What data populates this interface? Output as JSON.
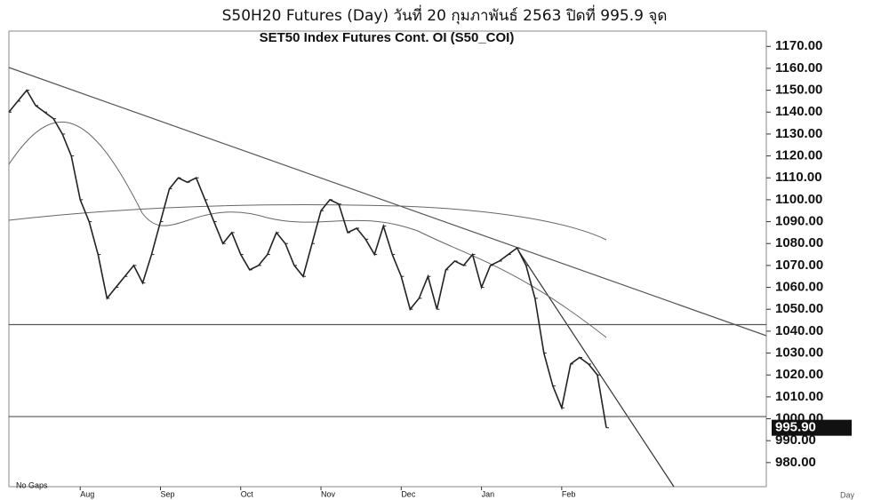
{
  "header": "S50H20 Futures (Day) วันที่   20 กุมภาพันธ์   2563 ปิดที่   995.9 จุด",
  "chart_data": {
    "type": "line",
    "title": "SET50 Index Futures Cont. OI (S50_COI)",
    "gap_note": "No Gaps",
    "period": "Day",
    "color": "#222222",
    "categories": [
      null,
      null,
      null,
      null,
      null,
      null,
      null,
      null,
      "Aug",
      null,
      null,
      null,
      null,
      null,
      null,
      null,
      null,
      "Sep",
      null,
      null,
      null,
      null,
      null,
      null,
      null,
      null,
      "Oct",
      null,
      null,
      null,
      null,
      null,
      null,
      null,
      null,
      "Nov",
      null,
      null,
      null,
      null,
      null,
      null,
      null,
      null,
      "Dec",
      null,
      null,
      null,
      null,
      null,
      null,
      null,
      null,
      "Jan",
      null,
      null,
      null,
      null,
      null,
      null,
      null,
      null,
      "Feb",
      null,
      null,
      null,
      null,
      null
    ],
    "values": [
      1140,
      1145,
      1150,
      1143,
      1140,
      1137,
      1130,
      1120,
      1100,
      1090,
      1075,
      1055,
      1060,
      1065,
      1070,
      1062,
      1075,
      1090,
      1105,
      1110,
      1108,
      1110,
      1100,
      1090,
      1080,
      1085,
      1075,
      1068,
      1070,
      1075,
      1085,
      1080,
      1070,
      1065,
      1080,
      1095,
      1100,
      1098,
      1085,
      1087,
      1082,
      1075,
      1088,
      1075,
      1065,
      1050,
      1055,
      1065,
      1050,
      1068,
      1072,
      1070,
      1075,
      1060,
      1070,
      1072,
      1075,
      1078,
      1070,
      1055,
      1030,
      1015,
      1005,
      1025,
      1028,
      1025,
      1020,
      995.9
    ],
    "value_labels": [
      null,
      null,
      null,
      null,
      null,
      null,
      null,
      null,
      null,
      null,
      null,
      null,
      null,
      null,
      null,
      null,
      null,
      null,
      null,
      null,
      null,
      null,
      null,
      null,
      null,
      null,
      null,
      null,
      null,
      null,
      null,
      null,
      null,
      null,
      null,
      null,
      null,
      null,
      null,
      null,
      null,
      null,
      null,
      null,
      null,
      null,
      null,
      null,
      null,
      null,
      null,
      null,
      null,
      null,
      null,
      null,
      null,
      null,
      null,
      null,
      null,
      null,
      null,
      null,
      null,
      null,
      null,
      "995.90"
    ],
    "reference_lines": [
      1043,
      1001
    ],
    "ylim": [
      969,
      1177
    ],
    "yticks": [
      {
        "value": 980,
        "label": "980.00"
      },
      {
        "value": 990,
        "label": "990.00"
      },
      {
        "value": 1000,
        "label": "1000.00"
      },
      {
        "value": 1010,
        "label": "1010.00"
      },
      {
        "value": 1020,
        "label": "1020.00"
      },
      {
        "value": 1030,
        "label": "1030.00"
      },
      {
        "value": 1040,
        "label": "1040.00"
      },
      {
        "value": 1050,
        "label": "1050.00"
      },
      {
        "value": 1060,
        "label": "1060.00"
      },
      {
        "value": 1070,
        "label": "1070.00"
      },
      {
        "value": 1080,
        "label": "1080.00"
      },
      {
        "value": 1090,
        "label": "1090.00"
      },
      {
        "value": 1100,
        "label": "1100.00"
      },
      {
        "value": 1110,
        "label": "1110.00"
      },
      {
        "value": 1120,
        "label": "1120.00"
      },
      {
        "value": 1130,
        "label": "1130.00"
      },
      {
        "value": 1140,
        "label": "1140.00"
      },
      {
        "value": 1150,
        "label": "1150.00"
      },
      {
        "value": 1160,
        "label": "1160.00"
      },
      {
        "value": 1170,
        "label": "1170.00"
      }
    ]
  }
}
